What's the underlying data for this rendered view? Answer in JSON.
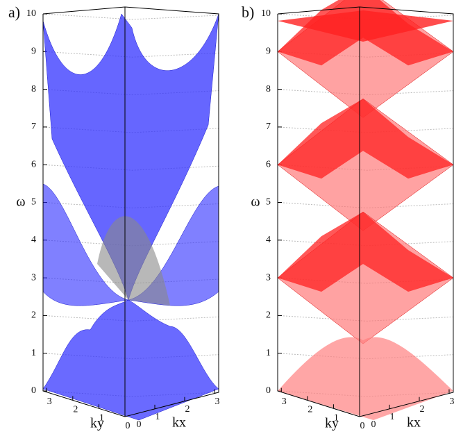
{
  "charts": [
    {
      "type": "surface",
      "label": "a)",
      "zlabel": "ω",
      "ylabel": "ky",
      "xlabel": "kx",
      "color": "#2b2bff",
      "zlim": [
        0,
        10
      ],
      "zticks": [
        0,
        1,
        2,
        3,
        4,
        5,
        6,
        7,
        8,
        9,
        10
      ],
      "ylim": [
        0,
        3.14
      ],
      "yticks": [
        0,
        1,
        2,
        3
      ],
      "xlim": [
        0,
        3.14
      ],
      "xticks": [
        0,
        1,
        2,
        3
      ]
    },
    {
      "type": "surface",
      "label": "b)",
      "zlabel": "ω",
      "ylabel": "ky",
      "xlabel": "kx",
      "color": "#ff2020",
      "zlim": [
        0,
        10
      ],
      "zticks": [
        0,
        1,
        2,
        3,
        4,
        5,
        6,
        7,
        8,
        9,
        10
      ],
      "ylim": [
        0,
        3.14
      ],
      "yticks": [
        0,
        1,
        2,
        3
      ],
      "xlim": [
        0,
        3.14
      ],
      "xticks": [
        0,
        1,
        2,
        3
      ]
    }
  ]
}
